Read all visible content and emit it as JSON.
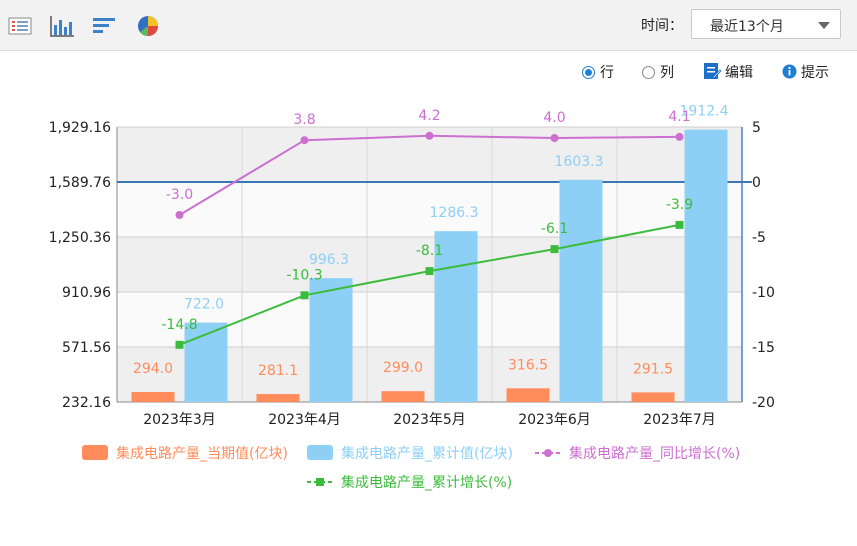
{
  "toolbar": {
    "icons": [
      "list-view-icon",
      "bar-chart-icon",
      "horizontal-bar-icon",
      "pie-chart-icon"
    ],
    "time_label": "时间：",
    "time_value": "最近13个月",
    "row_label": "行",
    "col_label": "列",
    "edit_label": "编辑",
    "hint_label": "提示"
  },
  "colors": {
    "current": "#ff8c5a",
    "cumulative": "#8ecff5",
    "yoy": "#cc6fd0",
    "cum_growth": "#3cbc3c",
    "zero_line": "#3a78b5"
  },
  "chart_data": {
    "type": "bar",
    "categories": [
      "2023年3月",
      "2023年4月",
      "2023年5月",
      "2023年6月",
      "2023年7月"
    ],
    "series": [
      {
        "name": "集成电路产量_当期值(亿块)",
        "kind": "bar",
        "axis": "left",
        "values": [
          294.0,
          281.1,
          299.0,
          316.5,
          291.5
        ],
        "labels": [
          "294.0",
          "281.1",
          "299.0",
          "316.5",
          "291.5"
        ]
      },
      {
        "name": "集成电路产量_累计值(亿块)",
        "kind": "bar",
        "axis": "left",
        "values": [
          722.0,
          996.3,
          1286.3,
          1603.3,
          1912.4
        ],
        "labels": [
          "722.0",
          "996.3",
          "1286.3",
          "1603.3",
          "1912.4"
        ]
      },
      {
        "name": "集成电路产量_同比增长(%)",
        "kind": "line",
        "axis": "right",
        "values": [
          -3.0,
          3.8,
          4.2,
          4.0,
          4.1
        ],
        "labels": [
          "-3.0",
          "3.8",
          "4.2",
          "4.0",
          "4.1"
        ]
      },
      {
        "name": "集成电路产量_累计增长(%)",
        "kind": "line",
        "axis": "right",
        "values": [
          -14.8,
          -10.3,
          -8.1,
          -6.1,
          -3.9
        ],
        "labels": [
          "-14.8",
          "-10.3",
          "-8.1",
          "-6.1",
          "-3.9"
        ]
      }
    ],
    "y_left": {
      "ticks": [
        "1,929.16",
        "1,589.76",
        "1,250.36",
        "910.96",
        "571.56",
        "232.16"
      ],
      "range": [
        232.16,
        1929.16
      ]
    },
    "y_right": {
      "ticks": [
        "5",
        "0",
        "-5",
        "-10",
        "-15",
        "-20"
      ],
      "range": [
        -20,
        5
      ]
    },
    "grid": true,
    "legend_position": "bottom"
  }
}
